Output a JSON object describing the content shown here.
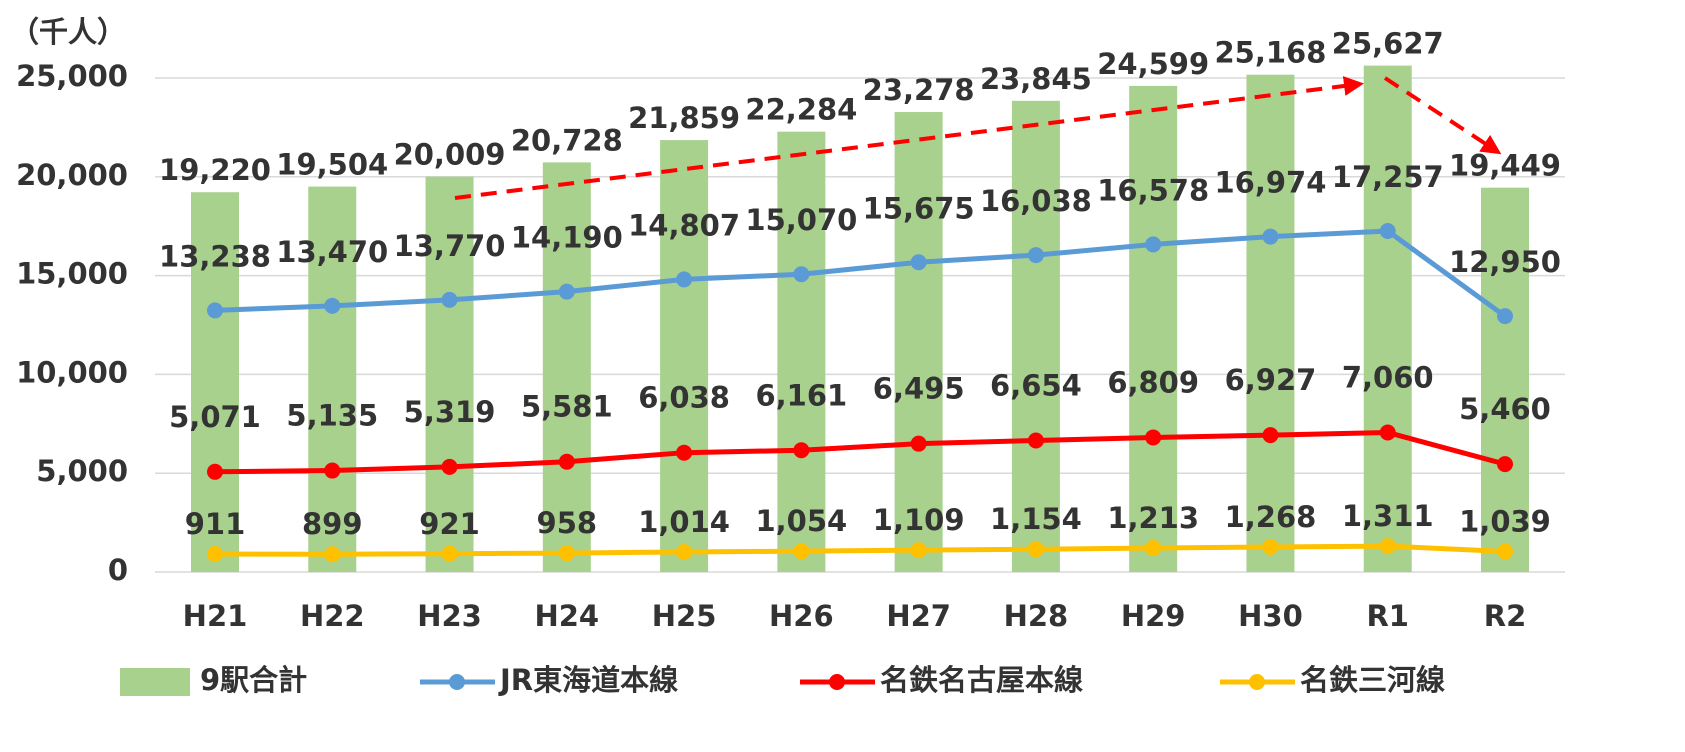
{
  "chart_data": {
    "type": "bar",
    "y_axis_label": "（千人）",
    "categories": [
      "H21",
      "H22",
      "H23",
      "H24",
      "H25",
      "H26",
      "H27",
      "H28",
      "H29",
      "H30",
      "R1",
      "R2"
    ],
    "ylim": [
      0,
      25000
    ],
    "yticks": [
      0,
      {
        "value": 5000,
        "label": "5,000"
      },
      {
        "value": 10000,
        "label": "10,000"
      },
      {
        "value": 15000,
        "label": "15,000"
      },
      {
        "value": 20000,
        "label": "20,000"
      },
      {
        "value": 25000,
        "label": "25,000"
      }
    ],
    "legend": "bottom",
    "series": [
      {
        "name": "9駅合計",
        "type": "bar",
        "color": "#a9d18e",
        "values": [
          19220,
          19504,
          20009,
          20728,
          21859,
          22284,
          23278,
          23845,
          24599,
          25168,
          25627,
          19449
        ],
        "value_labels": [
          "19,220",
          "19,504",
          "20,009",
          "20,728",
          "21,859",
          "22,284",
          "23,278",
          "23,845",
          "24,599",
          "25,168",
          "25,627",
          "19,449"
        ]
      },
      {
        "name": "JR東海道本線",
        "type": "line",
        "color": "#5b9bd5",
        "values": [
          13238,
          13470,
          13770,
          14190,
          14807,
          15070,
          15675,
          16038,
          16578,
          16974,
          17257,
          12950
        ],
        "value_labels": [
          "13,238",
          "13,470",
          "13,770",
          "14,190",
          "14,807",
          "15,070",
          "15,675",
          "16,038",
          "16,578",
          "16,974",
          "17,257",
          "12,950"
        ]
      },
      {
        "name": "名鉄名古屋本線",
        "type": "line",
        "color": "#ff0000",
        "values": [
          5071,
          5135,
          5319,
          5581,
          6038,
          6161,
          6495,
          6654,
          6809,
          6927,
          7060,
          5460
        ],
        "value_labels": [
          "5,071",
          "5,135",
          "5,319",
          "5,581",
          "6,038",
          "6,161",
          "6,495",
          "6,654",
          "6,809",
          "6,927",
          "7,060",
          "5,460"
        ]
      },
      {
        "name": "名鉄三河線",
        "type": "line",
        "color": "#ffc000",
        "values": [
          911,
          899,
          921,
          958,
          1014,
          1054,
          1109,
          1154,
          1213,
          1268,
          1311,
          1039
        ],
        "value_labels": [
          "911",
          "899",
          "921",
          "958",
          "1,014",
          "1,054",
          "1,109",
          "1,154",
          "1,213",
          "1,268",
          "1,311",
          "1,039"
        ]
      }
    ]
  }
}
